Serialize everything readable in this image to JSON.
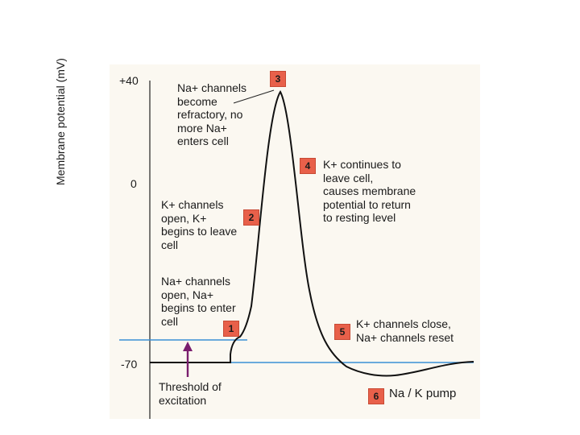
{
  "diagram": {
    "y_axis_label": "Membrane potential (mV)",
    "y_ticks": [
      "+40",
      "0",
      "-70"
    ],
    "threshold_label": "Threshold of\nexcitation",
    "steps": [
      {
        "number": "1",
        "text": "Na+ channels\nopen, Na+\nbegins to enter\ncell"
      },
      {
        "number": "2",
        "text": "K+ channels\nopen, K+\nbegins to leave\ncell"
      },
      {
        "number": "3",
        "text": "Na+ channels\nbecome\nrefractory, no\nmore Na+\nenters cell"
      },
      {
        "number": "4",
        "text": "K+ continues to\nleave cell,\ncauses membrane\npotential to return\nto resting level"
      },
      {
        "number": "5",
        "text": "K+ channels close,\nNa+ channels reset"
      },
      {
        "number": "6",
        "text": "Na / K pump"
      }
    ],
    "colors": {
      "curve": "#111111",
      "threshold_line": "#3b8fd6",
      "resting_line": "#3b8fd6",
      "threshold_arrow": "#7a1e6e",
      "badge": "#e8604a"
    }
  }
}
